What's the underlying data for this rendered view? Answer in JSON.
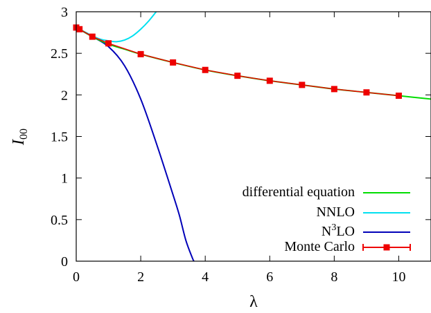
{
  "chart_data": {
    "type": "line",
    "xlabel": "λ",
    "ylabel": "I",
    "ylabel_sub": "00",
    "xlim": [
      0,
      11
    ],
    "ylim": [
      0,
      3
    ],
    "x_ticks": [
      "0",
      "2",
      "4",
      "6",
      "8",
      "10"
    ],
    "y_ticks": [
      "0",
      "0.5",
      "1",
      "1.5",
      "2",
      "2.5",
      "3"
    ],
    "grid": false,
    "legend_position": "bottom-right",
    "legend": {
      "de": "differential equation",
      "nnlo": "NNLO",
      "n3lo_prefix": "N",
      "n3lo_sup": "3",
      "n3lo_suffix": "LO",
      "mc": "Monte Carlo"
    },
    "colors": {
      "de": "#00dd00",
      "nnlo": "#00e0f0",
      "n3lo": "#0000b8",
      "mc": "#ee0000"
    },
    "series": [
      {
        "key": "de",
        "x": [
          0,
          0.1,
          0.5,
          1,
          1.5,
          2,
          3,
          4,
          5,
          6,
          7,
          8,
          9,
          10,
          11
        ],
        "values": [
          2.81,
          2.79,
          2.7,
          2.61,
          2.55,
          2.49,
          2.39,
          2.3,
          2.23,
          2.17,
          2.12,
          2.07,
          2.03,
          1.99,
          1.95
        ]
      },
      {
        "key": "nnlo",
        "x": [
          0,
          0.25,
          0.5,
          0.75,
          1,
          1.25,
          1.5,
          1.75,
          2,
          2.25,
          2.5
        ],
        "values": [
          2.81,
          2.76,
          2.71,
          2.67,
          2.65,
          2.64,
          2.66,
          2.71,
          2.79,
          2.89,
          3.01
        ]
      },
      {
        "key": "n3lo",
        "x": [
          0,
          0.5,
          1,
          1.5,
          2,
          2.5,
          3,
          3.2,
          3.4,
          3.6,
          3.65
        ],
        "values": [
          2.81,
          2.7,
          2.58,
          2.35,
          1.95,
          1.4,
          0.8,
          0.55,
          0.25,
          0.04,
          0.0
        ]
      },
      {
        "key": "mc",
        "x": [
          0,
          0.1,
          0.5,
          1,
          2,
          3,
          4,
          5,
          6,
          7,
          8,
          9,
          10
        ],
        "values": [
          2.81,
          2.79,
          2.7,
          2.62,
          2.49,
          2.39,
          2.3,
          2.23,
          2.17,
          2.12,
          2.07,
          2.03,
          1.99
        ]
      }
    ]
  }
}
